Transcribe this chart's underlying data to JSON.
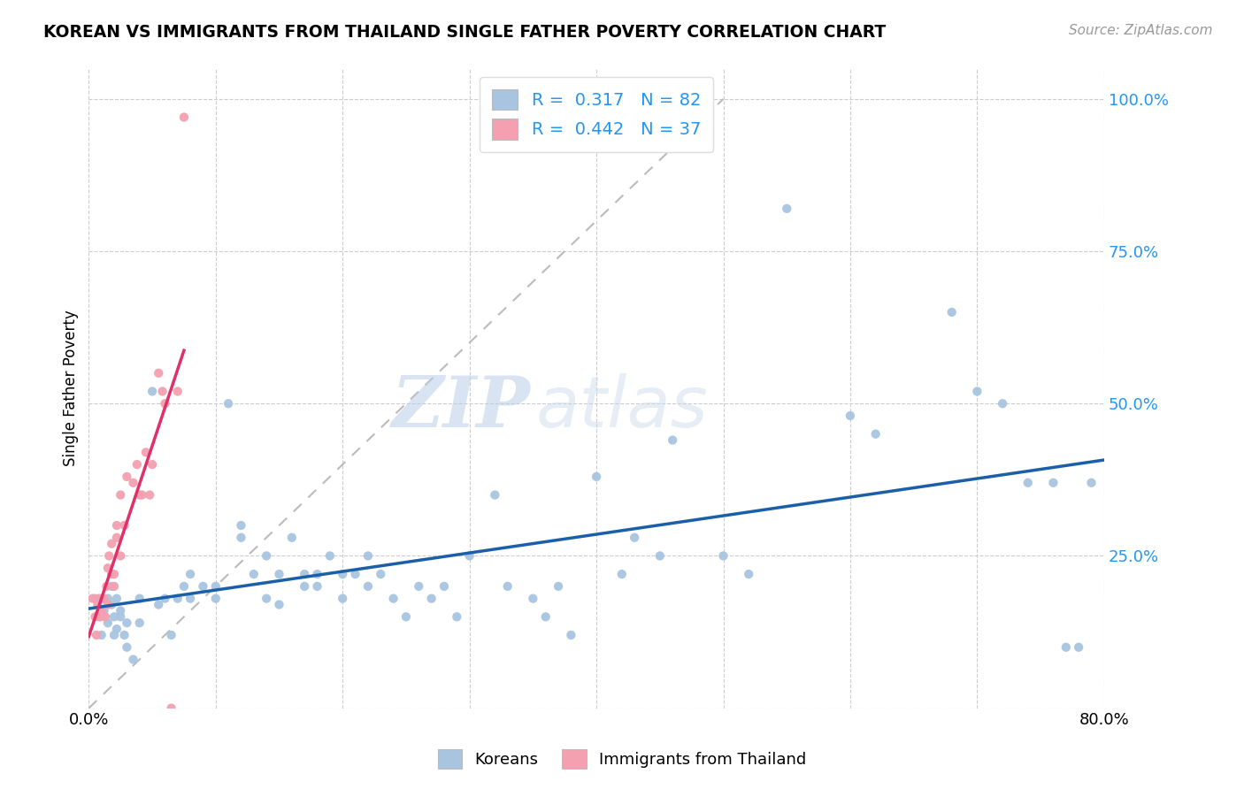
{
  "title": "KOREAN VS IMMIGRANTS FROM THAILAND SINGLE FATHER POVERTY CORRELATION CHART",
  "source": "Source: ZipAtlas.com",
  "ylabel": "Single Father Poverty",
  "xlim": [
    0.0,
    0.8
  ],
  "ylim": [
    0.0,
    1.05
  ],
  "x_ticks": [
    0.0,
    0.1,
    0.2,
    0.3,
    0.4,
    0.5,
    0.6,
    0.7,
    0.8
  ],
  "x_tick_labels": [
    "0.0%",
    "",
    "",
    "",
    "",
    "",
    "",
    "",
    "80.0%"
  ],
  "y_ticks_right": [
    0.0,
    0.25,
    0.5,
    0.75,
    1.0
  ],
  "y_tick_labels_right": [
    "",
    "25.0%",
    "50.0%",
    "75.0%",
    "100.0%"
  ],
  "korean_color": "#a8c4e0",
  "thai_color": "#f4a0b0",
  "korean_R": 0.317,
  "korean_N": 82,
  "thai_R": 0.442,
  "thai_N": 37,
  "trend_korean_color": "#1a5fa8",
  "trend_thai_color": "#e0306a",
  "watermark_zip": "ZIP",
  "watermark_atlas": "atlas",
  "korean_x": [
    0.005,
    0.008,
    0.01,
    0.012,
    0.015,
    0.015,
    0.018,
    0.018,
    0.02,
    0.02,
    0.022,
    0.022,
    0.025,
    0.025,
    0.028,
    0.03,
    0.03,
    0.035,
    0.04,
    0.04,
    0.05,
    0.055,
    0.06,
    0.065,
    0.07,
    0.075,
    0.08,
    0.08,
    0.09,
    0.1,
    0.1,
    0.11,
    0.12,
    0.12,
    0.13,
    0.14,
    0.14,
    0.15,
    0.15,
    0.16,
    0.17,
    0.17,
    0.18,
    0.18,
    0.19,
    0.2,
    0.2,
    0.21,
    0.22,
    0.22,
    0.23,
    0.24,
    0.25,
    0.26,
    0.27,
    0.28,
    0.29,
    0.3,
    0.32,
    0.33,
    0.35,
    0.36,
    0.37,
    0.38,
    0.4,
    0.42,
    0.43,
    0.45,
    0.46,
    0.5,
    0.52,
    0.55,
    0.6,
    0.62,
    0.68,
    0.7,
    0.72,
    0.74,
    0.76,
    0.77,
    0.78,
    0.79
  ],
  "korean_y": [
    0.18,
    0.15,
    0.12,
    0.16,
    0.14,
    0.18,
    0.17,
    0.2,
    0.12,
    0.15,
    0.13,
    0.18,
    0.15,
    0.16,
    0.12,
    0.14,
    0.1,
    0.08,
    0.14,
    0.18,
    0.52,
    0.17,
    0.18,
    0.12,
    0.18,
    0.2,
    0.22,
    0.18,
    0.2,
    0.18,
    0.2,
    0.5,
    0.28,
    0.3,
    0.22,
    0.25,
    0.18,
    0.22,
    0.17,
    0.28,
    0.2,
    0.22,
    0.2,
    0.22,
    0.25,
    0.18,
    0.22,
    0.22,
    0.2,
    0.25,
    0.22,
    0.18,
    0.15,
    0.2,
    0.18,
    0.2,
    0.15,
    0.25,
    0.35,
    0.2,
    0.18,
    0.15,
    0.2,
    0.12,
    0.38,
    0.22,
    0.28,
    0.25,
    0.44,
    0.25,
    0.22,
    0.82,
    0.48,
    0.45,
    0.65,
    0.52,
    0.5,
    0.37,
    0.37,
    0.1,
    0.1,
    0.37
  ],
  "thai_x": [
    0.003,
    0.005,
    0.006,
    0.007,
    0.008,
    0.009,
    0.01,
    0.01,
    0.012,
    0.013,
    0.014,
    0.015,
    0.015,
    0.016,
    0.018,
    0.018,
    0.02,
    0.02,
    0.022,
    0.022,
    0.025,
    0.025,
    0.028,
    0.03,
    0.035,
    0.038,
    0.04,
    0.042,
    0.045,
    0.048,
    0.05,
    0.055,
    0.058,
    0.06,
    0.065,
    0.07,
    0.075
  ],
  "thai_y": [
    0.18,
    0.15,
    0.12,
    0.17,
    0.18,
    0.15,
    0.16,
    0.18,
    0.18,
    0.15,
    0.2,
    0.23,
    0.17,
    0.25,
    0.22,
    0.27,
    0.2,
    0.22,
    0.3,
    0.28,
    0.25,
    0.35,
    0.3,
    0.38,
    0.37,
    0.4,
    0.35,
    0.35,
    0.42,
    0.35,
    0.4,
    0.55,
    0.52,
    0.5,
    0.0,
    0.52,
    0.97
  ]
}
